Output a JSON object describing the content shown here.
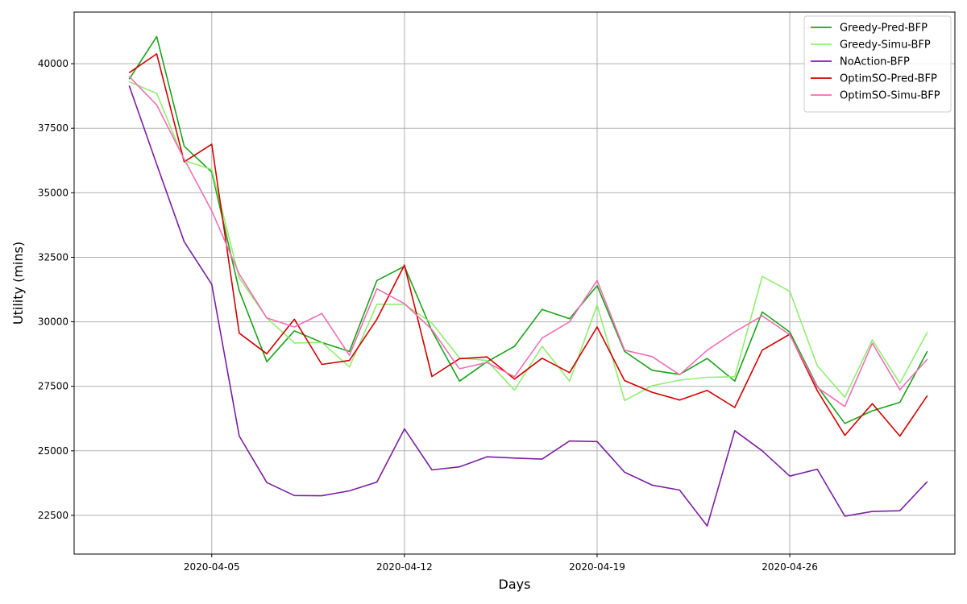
{
  "chart_data": {
    "type": "line",
    "title": "",
    "xlabel": "Days",
    "ylabel": "Utility (mins)",
    "x": [
      "2020-04-02",
      "2020-04-03",
      "2020-04-04",
      "2020-04-05",
      "2020-04-06",
      "2020-04-07",
      "2020-04-08",
      "2020-04-09",
      "2020-04-10",
      "2020-04-11",
      "2020-04-12",
      "2020-04-13",
      "2020-04-14",
      "2020-04-15",
      "2020-04-16",
      "2020-04-17",
      "2020-04-18",
      "2020-04-19",
      "2020-04-20",
      "2020-04-21",
      "2020-04-22",
      "2020-04-23",
      "2020-04-24",
      "2020-04-25",
      "2020-04-26",
      "2020-04-27",
      "2020-04-28",
      "2020-04-29",
      "2020-04-30",
      "2020-05-01"
    ],
    "xlim": [
      "2020-03-31",
      "2020-05-02"
    ],
    "x_ticks": [
      "2020-04-05",
      "2020-04-12",
      "2020-04-19",
      "2020-04-26"
    ],
    "ylim": [
      21000,
      42000
    ],
    "y_ticks": [
      22500,
      25000,
      27500,
      30000,
      32500,
      35000,
      37500,
      40000
    ],
    "grid": true,
    "legend_position": "top-right",
    "series": [
      {
        "name": "Greedy-Pred-BFP",
        "color": "#1aa31a",
        "values": [
          39400,
          41050,
          36800,
          35800,
          31200,
          28450,
          29650,
          29200,
          28850,
          31600,
          32150,
          29650,
          27700,
          28450,
          29050,
          30480,
          30120,
          31400,
          28850,
          28120,
          27960,
          28580,
          27700,
          30380,
          29600,
          27500,
          26060,
          26550,
          26880,
          28860
        ]
      },
      {
        "name": "Greedy-Simu-BFP",
        "color": "#90ee70",
        "values": [
          39300,
          38850,
          36250,
          35900,
          31700,
          30150,
          29180,
          29200,
          28250,
          30680,
          30680,
          29950,
          28600,
          28500,
          27350,
          29050,
          27700,
          30650,
          26950,
          27520,
          27740,
          27850,
          27870,
          31760,
          31180,
          28300,
          27080,
          29300,
          27620,
          29600
        ]
      },
      {
        "name": "NoAction-BFP",
        "color": "#7b1fa2",
        "values": [
          39150,
          36100,
          33100,
          31450,
          25570,
          23770,
          23270,
          23260,
          23450,
          23790,
          25850,
          24260,
          24380,
          24770,
          24720,
          24680,
          25380,
          25360,
          24170,
          23670,
          23480,
          22090,
          25780,
          25000,
          24020,
          24290,
          22470,
          22650,
          22680,
          23810
        ]
      },
      {
        "name": "OptimSO-Pred-BFP",
        "color": "#d40000",
        "values": [
          39650,
          40380,
          36200,
          36880,
          29560,
          28760,
          30100,
          28350,
          28500,
          30100,
          32200,
          27880,
          28570,
          28640,
          27780,
          28590,
          28030,
          29800,
          27720,
          27270,
          26970,
          27340,
          26680,
          28900,
          29520,
          27330,
          25600,
          26830,
          25570,
          27140
        ]
      },
      {
        "name": "OptimSO-Simu-BFP",
        "color": "#f06eb4",
        "values": [
          39500,
          38400,
          36300,
          34300,
          31850,
          30150,
          29800,
          30320,
          28700,
          31280,
          30700,
          29700,
          28180,
          28420,
          27870,
          29370,
          30000,
          31600,
          28900,
          28650,
          27950,
          28900,
          29610,
          30230,
          29500,
          27460,
          26720,
          29170,
          27370,
          28550
        ]
      }
    ]
  }
}
